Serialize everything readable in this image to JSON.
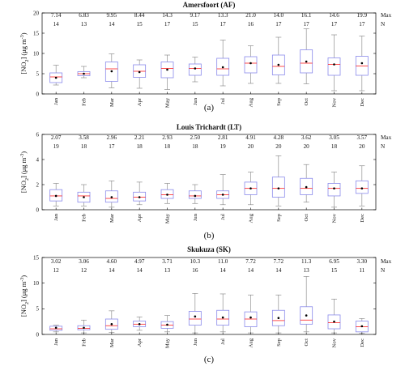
{
  "chart_data": [
    {
      "type": "box",
      "title": "Amersfoort (AF)",
      "caption": "(a)",
      "ylabel_parts": {
        "main": "[NO",
        "sub": "2",
        "mid": "] (μg m",
        "sup": "-3",
        "end": ")"
      },
      "stat_labels": {
        "max": "Max",
        "n": "N"
      },
      "ylim": [
        0,
        20
      ],
      "yticks": [
        0,
        5,
        10,
        15,
        20
      ],
      "tick_labels": [
        "0",
        "5",
        "10",
        "15",
        "20"
      ],
      "colors": {
        "box": "#8a8aeb",
        "median": "#ff2020",
        "mean": "#000000",
        "whisker": "#7f7f7f"
      },
      "categories": [
        "Jan",
        "Feb",
        "Mar",
        "Apr",
        "May",
        "Jun",
        "Jul",
        "Aug",
        "Sep",
        "Oct",
        "Nov",
        "Dec"
      ],
      "max_labels": [
        "7.14",
        "6.83",
        "9.95",
        "8.44",
        "14.3",
        "9.17",
        "13.3",
        "21.0",
        "14.0",
        "16.1",
        "14.6",
        "19.9"
      ],
      "n_labels": [
        "14",
        "13",
        "14",
        "15",
        "17",
        "15",
        "17",
        "16",
        "17",
        "17",
        "17",
        "17"
      ],
      "boxes": [
        {
          "low": 2.2,
          "q1": 2.8,
          "median": 4.2,
          "q3": 5.2,
          "high": 7.1,
          "mean": 4.0
        },
        {
          "low": 4.0,
          "q1": 4.5,
          "median": 5.0,
          "q3": 5.5,
          "high": 6.8,
          "mean": 5.0
        },
        {
          "low": 1.5,
          "q1": 3.1,
          "median": 6.2,
          "q3": 7.9,
          "high": 9.9,
          "mean": 5.6
        },
        {
          "low": 1.4,
          "q1": 4.1,
          "median": 5.6,
          "q3": 7.2,
          "high": 8.4,
          "mean": 5.4
        },
        {
          "low": 1.1,
          "q1": 4.0,
          "median": 6.3,
          "q3": 7.9,
          "high": 9.6,
          "mean": 6.0
        },
        {
          "low": 3.0,
          "q1": 4.6,
          "median": 6.3,
          "q3": 7.4,
          "high": 9.1,
          "mean": 6.3
        },
        {
          "low": 2.0,
          "q1": 4.6,
          "median": 6.2,
          "q3": 8.8,
          "high": 13.3,
          "mean": 6.6
        },
        {
          "low": 2.6,
          "q1": 5.2,
          "median": 7.6,
          "q3": 9.2,
          "high": 11.9,
          "mean": 7.6
        },
        {
          "low": 2.6,
          "q1": 4.7,
          "median": 6.8,
          "q3": 9.6,
          "high": 14.0,
          "mean": 7.2
        },
        {
          "low": 2.5,
          "q1": 5.2,
          "median": 7.6,
          "q3": 10.9,
          "high": 16.1,
          "mean": 8.0
        },
        {
          "low": 0.8,
          "q1": 4.6,
          "median": 7.3,
          "q3": 8.9,
          "high": 14.6,
          "mean": 7.3
        },
        {
          "low": 0.8,
          "q1": 4.6,
          "median": 6.9,
          "q3": 9.3,
          "high": 14.3,
          "mean": 7.6
        }
      ]
    },
    {
      "type": "box",
      "title": "Louis Trichardt (LT)",
      "caption": "(b)",
      "ylabel_parts": {
        "main": "[NO",
        "sub": "2",
        "mid": "] (μg m",
        "sup": "-3",
        "end": ")"
      },
      "stat_labels": {
        "max": "Max",
        "n": "N"
      },
      "ylim": [
        0,
        6
      ],
      "yticks": [
        0,
        2,
        4,
        6
      ],
      "tick_labels": [
        "0",
        "2",
        "4",
        "6"
      ],
      "colors": {
        "box": "#8a8aeb",
        "median": "#ff2020",
        "mean": "#000000",
        "whisker": "#7f7f7f"
      },
      "categories": [
        "Jan",
        "Feb",
        "Mar",
        "Apr",
        "May",
        "Jun",
        "Jul",
        "Aug",
        "Sep",
        "Oct",
        "Nov",
        "Dec"
      ],
      "max_labels": [
        "2.07",
        "3.58",
        "2.96",
        "2.21",
        "2.93",
        "2.50",
        "2.81",
        "4.91",
        "4.28",
        "3.62",
        "3.05",
        "3.57"
      ],
      "n_labels": [
        "19",
        "18",
        "17",
        "18",
        "18",
        "18",
        "19",
        "20",
        "20",
        "20",
        "18",
        "20"
      ],
      "boxes": [
        {
          "low": 0.3,
          "q1": 0.7,
          "median": 1.1,
          "q3": 1.6,
          "high": 2.1,
          "mean": 1.1
        },
        {
          "low": 0.3,
          "q1": 0.6,
          "median": 1.1,
          "q3": 1.4,
          "high": 2.0,
          "mean": 1.0
        },
        {
          "low": 0.2,
          "q1": 0.6,
          "median": 0.9,
          "q3": 1.5,
          "high": 2.3,
          "mean": 1.0
        },
        {
          "low": 0.4,
          "q1": 0.7,
          "median": 1.0,
          "q3": 1.4,
          "high": 2.2,
          "mean": 1.0
        },
        {
          "low": 0.5,
          "q1": 0.9,
          "median": 1.2,
          "q3": 1.6,
          "high": 2.1,
          "mean": 1.2
        },
        {
          "low": 0.5,
          "q1": 0.9,
          "median": 1.1,
          "q3": 1.5,
          "high": 2.0,
          "mean": 1.1
        },
        {
          "low": 0.4,
          "q1": 0.9,
          "median": 1.2,
          "q3": 1.5,
          "high": 2.8,
          "mean": 1.2
        },
        {
          "low": 0.4,
          "q1": 1.2,
          "median": 1.7,
          "q3": 2.2,
          "high": 3.0,
          "mean": 1.7
        },
        {
          "low": 0.3,
          "q1": 1.0,
          "median": 1.7,
          "q3": 2.6,
          "high": 4.3,
          "mean": 1.7
        },
        {
          "low": 0.6,
          "q1": 1.2,
          "median": 1.7,
          "q3": 2.5,
          "high": 3.6,
          "mean": 1.8
        },
        {
          "low": 0.2,
          "q1": 1.1,
          "median": 1.7,
          "q3": 2.1,
          "high": 3.0,
          "mean": 1.7
        },
        {
          "low": 0.3,
          "q1": 1.3,
          "median": 1.7,
          "q3": 2.3,
          "high": 3.5,
          "mean": 1.7
        }
      ]
    },
    {
      "type": "box",
      "title": "Skukuza (SK)",
      "caption": "(c)",
      "ylabel_parts": {
        "main": "[NO",
        "sub": "2",
        "mid": "] (μg m",
        "sup": "-3",
        "end": ")"
      },
      "stat_labels": {
        "max": "Max",
        "n": "N"
      },
      "ylim": [
        0,
        15
      ],
      "yticks": [
        0,
        5,
        10,
        15
      ],
      "tick_labels": [
        "0",
        "5",
        "10",
        "15"
      ],
      "colors": {
        "box": "#8a8aeb",
        "median": "#ff2020",
        "mean": "#000000",
        "whisker": "#7f7f7f"
      },
      "categories": [
        "Jan",
        "Feb",
        "Mar",
        "Apr",
        "May",
        "Jun",
        "Jul",
        "Aug",
        "Sep",
        "Oct",
        "Nov",
        "Dec"
      ],
      "max_labels": [
        "3.02",
        "3.06",
        "4.60",
        "4.97",
        "3.71",
        "10.3",
        "11.0",
        "7.72",
        "7.72",
        "11.3",
        "6.95",
        "3.30"
      ],
      "n_labels": [
        "12",
        "12",
        "14",
        "14",
        "13",
        "16",
        "14",
        "14",
        "14",
        "13",
        "15",
        "11"
      ],
      "boxes": [
        {
          "low": 0.5,
          "q1": 0.8,
          "median": 1.1,
          "q3": 1.6,
          "high": 1.8,
          "mean": 1.3
        },
        {
          "low": 0.3,
          "q1": 0.9,
          "median": 1.2,
          "q3": 1.7,
          "high": 2.8,
          "mean": 1.3
        },
        {
          "low": 0.4,
          "q1": 1.0,
          "median": 1.7,
          "q3": 3.0,
          "high": 4.6,
          "mean": 2.0
        },
        {
          "low": 0.8,
          "q1": 1.5,
          "median": 2.0,
          "q3": 2.6,
          "high": 3.4,
          "mean": 2.0
        },
        {
          "low": 0.5,
          "q1": 1.2,
          "median": 1.8,
          "q3": 2.5,
          "high": 3.7,
          "mean": 1.9
        },
        {
          "low": 0.3,
          "q1": 1.8,
          "median": 3.0,
          "q3": 4.5,
          "high": 8.0,
          "mean": 3.5
        },
        {
          "low": 0.5,
          "q1": 1.8,
          "median": 3.0,
          "q3": 4.7,
          "high": 7.9,
          "mean": 3.3
        },
        {
          "low": 0.3,
          "q1": 1.5,
          "median": 3.0,
          "q3": 4.4,
          "high": 7.7,
          "mean": 3.3
        },
        {
          "low": 0.3,
          "q1": 1.7,
          "median": 2.7,
          "q3": 4.7,
          "high": 7.7,
          "mean": 3.2
        },
        {
          "low": 0.5,
          "q1": 2.0,
          "median": 2.8,
          "q3": 5.4,
          "high": 11.3,
          "mean": 3.7
        },
        {
          "low": 0.3,
          "q1": 1.1,
          "median": 2.3,
          "q3": 3.8,
          "high": 6.9,
          "mean": 2.5
        },
        {
          "low": 0.2,
          "q1": 0.5,
          "median": 1.5,
          "q3": 2.6,
          "high": 3.1,
          "mean": 1.6
        }
      ]
    }
  ]
}
